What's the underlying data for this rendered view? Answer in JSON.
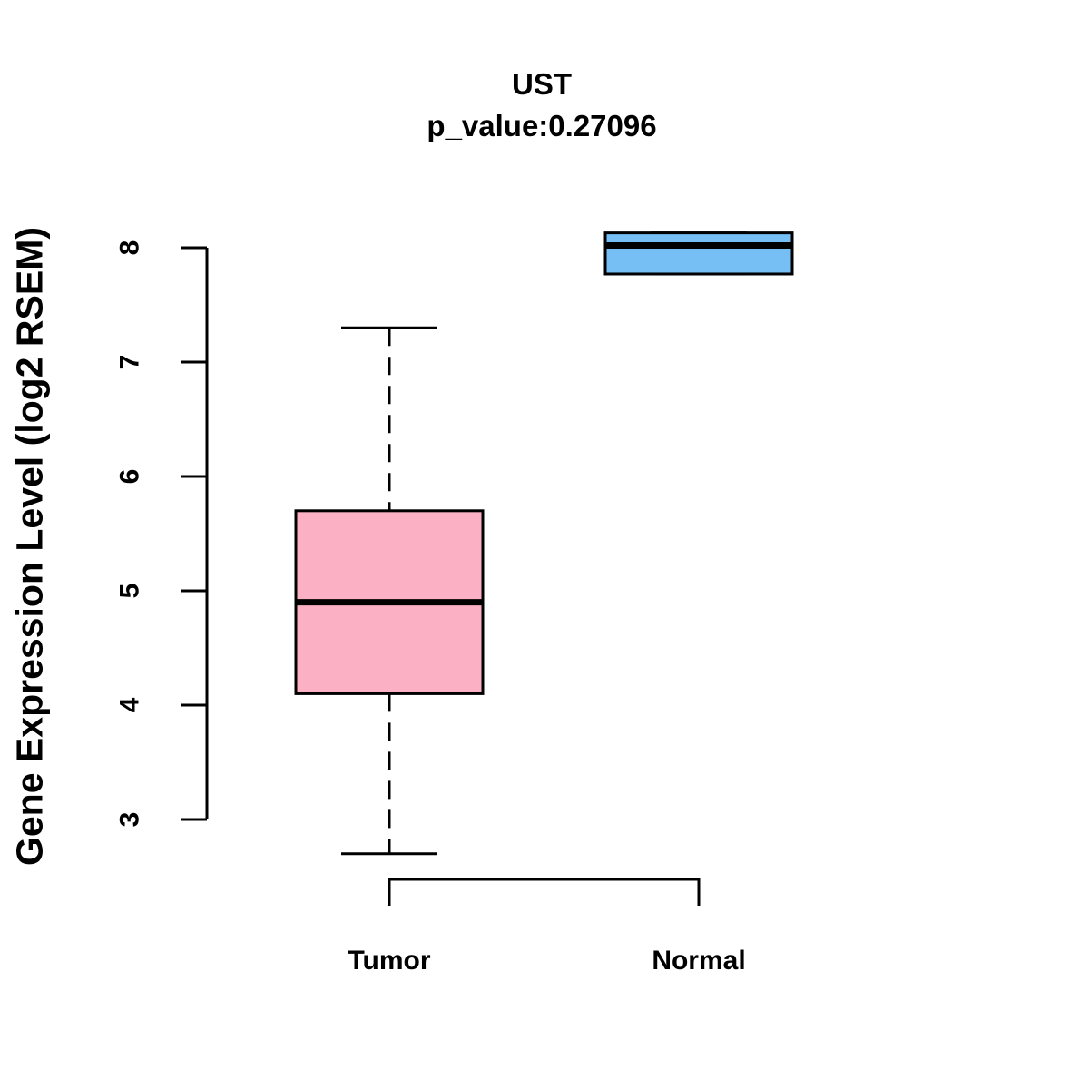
{
  "title": "UST",
  "subtitle": "p_value:0.27096",
  "y_axis": {
    "label": "Gene Expression Level (log2 RSEM)",
    "ticks": [
      "3",
      "4",
      "5",
      "6",
      "7",
      "8"
    ]
  },
  "x_axis": {
    "categories": [
      "Tumor",
      "Normal"
    ]
  },
  "colors": {
    "tumor_fill": "#FCB0C3",
    "normal_fill": "#75BFF5",
    "line": "#000000",
    "background": "#FFFFFF"
  },
  "chart_data": {
    "type": "boxplot",
    "title": "UST",
    "subtitle": "p_value:0.27096",
    "ylabel": "Gene Expression Level (log2 RSEM)",
    "ylim": [
      3,
      8
    ],
    "y_tick_values": [
      3,
      4,
      5,
      6,
      7,
      8
    ],
    "grid": false,
    "legend": false,
    "categories": [
      "Tumor",
      "Normal"
    ],
    "series": [
      {
        "name": "Tumor",
        "min": 2.7,
        "q1": 4.1,
        "median": 4.9,
        "q3": 5.7,
        "max": 7.3,
        "fill": "#FCB0C3"
      },
      {
        "name": "Normal",
        "min": 7.77,
        "q1": 7.77,
        "median": 8.02,
        "q3": 8.13,
        "max": 8.13,
        "fill": "#75BFF5"
      }
    ]
  }
}
